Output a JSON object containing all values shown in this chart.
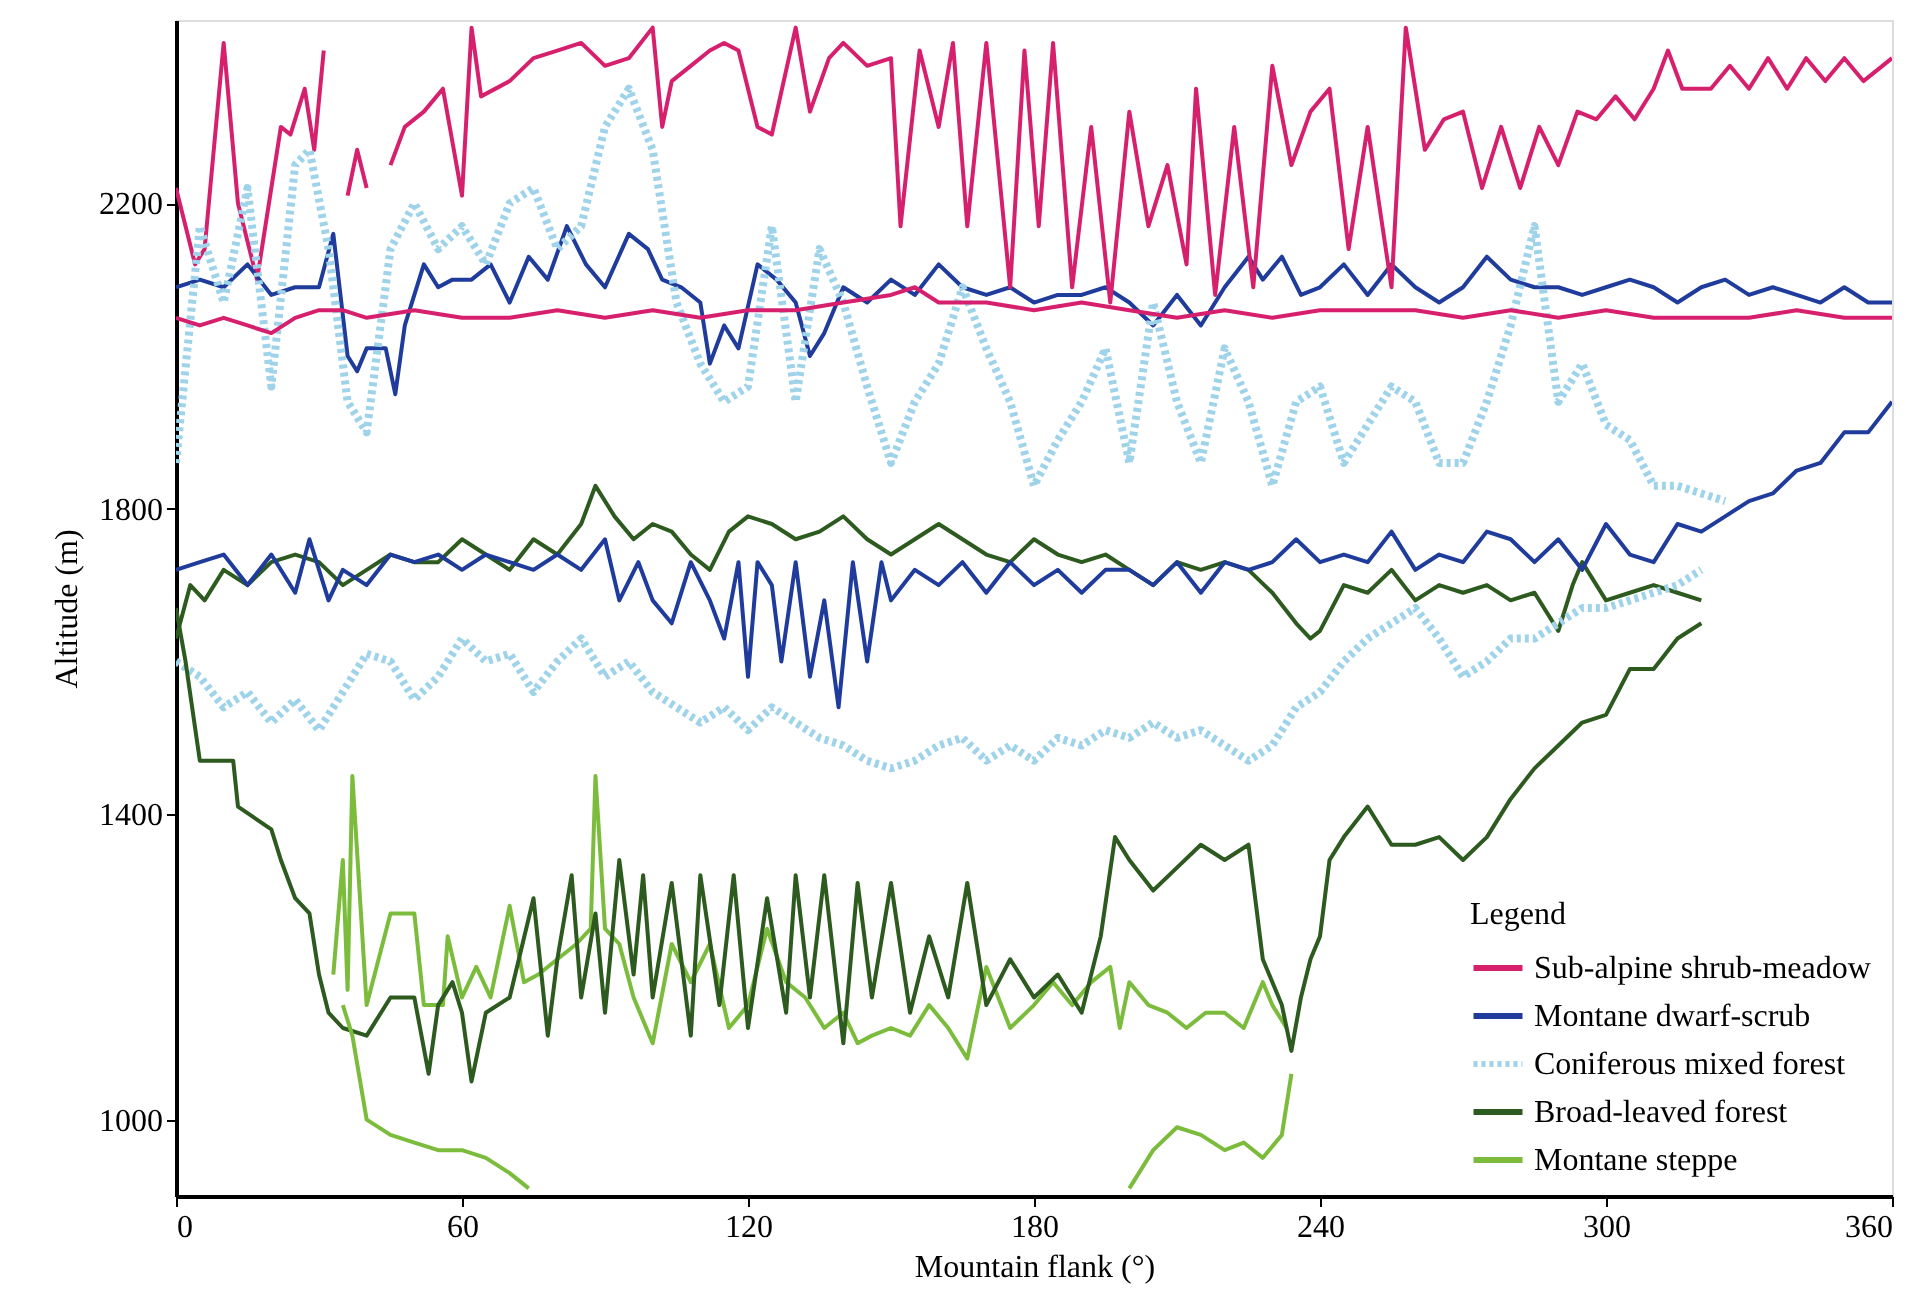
{
  "chart_data": {
    "type": "line",
    "xlabel": "Mountain flank (°)",
    "ylabel": "Altitude (m)",
    "legend_title": "Legend",
    "xlim": [
      0,
      360
    ],
    "xticks": [
      0,
      60,
      120,
      180,
      240,
      300,
      360
    ],
    "ylim": [
      900,
      2440
    ],
    "yticks": [
      1000,
      1400,
      1800,
      2200
    ],
    "grid": false,
    "legend": "bottom right",
    "marker": "none",
    "series": [
      {
        "name": "Sub-alpine shrub-meadow",
        "color": "#d6206e",
        "line_style": "solid",
        "x": [
          0,
          4,
          6,
          10,
          13,
          17,
          22,
          24,
          27,
          29,
          31
        ],
        "values": [
          2220,
          2120,
          2140,
          2410,
          2200,
          2100,
          2300,
          2290,
          2350,
          2270,
          2400
        ]
      },
      {
        "name": "Montane dwarf-scrub",
        "color": "#1f3c9c",
        "line_style": "solid",
        "x": [
          0,
          5,
          10,
          15,
          20,
          25,
          30,
          33,
          36,
          38,
          40,
          44,
          46,
          48,
          52,
          55,
          58,
          62,
          66,
          70,
          74,
          78,
          82,
          86,
          90,
          95,
          99,
          102,
          106,
          110,
          112,
          115,
          118,
          122,
          126,
          130,
          133,
          136,
          140,
          145,
          150,
          155,
          160,
          165,
          170,
          175,
          180,
          185,
          190,
          195,
          200,
          205,
          210,
          215,
          220,
          225,
          228,
          232,
          236,
          240,
          245,
          250,
          255,
          260,
          265,
          270,
          275,
          280,
          285,
          290,
          295,
          300,
          305,
          310,
          315,
          320,
          325,
          330,
          335,
          340,
          345,
          350,
          355,
          360
        ],
        "values": [
          2090,
          2100,
          2090,
          2120,
          2080,
          2090,
          2090,
          2160,
          2000,
          1980,
          2010,
          2010,
          1950,
          2040,
          2120,
          2090,
          2100,
          2100,
          2120,
          2070,
          2130,
          2100,
          2170,
          2120,
          2090,
          2160,
          2140,
          2100,
          2090,
          2070,
          1990,
          2040,
          2010,
          2120,
          2100,
          2070,
          2000,
          2030,
          2090,
          2070,
          2100,
          2080,
          2120,
          2090,
          2080,
          2090,
          2070,
          2080,
          2080,
          2090,
          2070,
          2040,
          2080,
          2040,
          2090,
          2130,
          2100,
          2130,
          2080,
          2090,
          2120,
          2080,
          2120,
          2090,
          2070,
          2090,
          2130,
          2100,
          2090,
          2090,
          2080,
          2090,
          2100,
          2090,
          2070,
          2090,
          2100,
          2080,
          2090,
          2080,
          2070,
          2090,
          2070,
          2070
        ]
      },
      {
        "name": "Coniferous mixed forest",
        "color": "#9fd3ea",
        "line_style": "dotted",
        "x": [
          0,
          5,
          10,
          15,
          20,
          25,
          28,
          32,
          36,
          40,
          45,
          50,
          55,
          60,
          65,
          70,
          75,
          80,
          85,
          90,
          95,
          100,
          105,
          110,
          115,
          120,
          125,
          130,
          135,
          140,
          145,
          150,
          155,
          160,
          165,
          170,
          175,
          180,
          185,
          190,
          195,
          200,
          205,
          210,
          215,
          220,
          225,
          230,
          235,
          240,
          245,
          250,
          255,
          260,
          265,
          270,
          275,
          280,
          285,
          290,
          295,
          300,
          305,
          310,
          315,
          320,
          325
        ],
        "values": [
          1860,
          2170,
          2070,
          2220,
          1960,
          2250,
          2270,
          2140,
          1940,
          1900,
          2140,
          2200,
          2140,
          2170,
          2120,
          2200,
          2220,
          2140,
          2170,
          2300,
          2350,
          2270,
          2070,
          1990,
          1940,
          1960,
          2170,
          1940,
          2140,
          2070,
          1960,
          1860,
          1940,
          1990,
          2090,
          2010,
          1940,
          1830,
          1890,
          1940,
          2010,
          1860,
          2070,
          1940,
          1860,
          2010,
          1940,
          1830,
          1940,
          1960,
          1860,
          1910,
          1960,
          1940,
          1860,
          1860,
          1940,
          2040,
          2170,
          1940,
          1990,
          1910,
          1890,
          1830,
          1830,
          1820,
          1810
        ]
      },
      {
        "name": "Broad-leaved forest",
        "color": "#2d5a1e",
        "line_style": "solid",
        "x": [
          0,
          3,
          6,
          10,
          15,
          20,
          25,
          30,
          35,
          40,
          45,
          50,
          55,
          60,
          65,
          70,
          75,
          80,
          85,
          88,
          92,
          96,
          100,
          104,
          108,
          112,
          116,
          120,
          125,
          130,
          135,
          140,
          145,
          150,
          155,
          160,
          165,
          170,
          175,
          180,
          185,
          190,
          195,
          200,
          205,
          210,
          215,
          220,
          225,
          230,
          235,
          238,
          240,
          245,
          250,
          255,
          260,
          265,
          270,
          275,
          280,
          285,
          290,
          293,
          295,
          300,
          305,
          310,
          315,
          320
        ],
        "values": [
          1630,
          1700,
          1680,
          1720,
          1700,
          1730,
          1740,
          1730,
          1700,
          1720,
          1740,
          1730,
          1730,
          1760,
          1740,
          1720,
          1760,
          1740,
          1780,
          1830,
          1790,
          1760,
          1780,
          1770,
          1740,
          1720,
          1770,
          1790,
          1780,
          1760,
          1770,
          1790,
          1760,
          1740,
          1760,
          1780,
          1760,
          1740,
          1730,
          1760,
          1740,
          1730,
          1740,
          1720,
          1700,
          1730,
          1720,
          1730,
          1720,
          1690,
          1650,
          1630,
          1640,
          1700,
          1690,
          1720,
          1680,
          1700,
          1690,
          1700,
          1680,
          1690,
          1640,
          1700,
          1730,
          1680,
          1690,
          1700,
          1690,
          1680
        ]
      },
      {
        "name": "Montane steppe",
        "color": "#7cbc3c",
        "line_style": "solid",
        "x": [
          33,
          35,
          36,
          37,
          40,
          45,
          50,
          52,
          56,
          57,
          60,
          63,
          66,
          70,
          73,
          76,
          80,
          84,
          87,
          88,
          90,
          93,
          96,
          100,
          104,
          108,
          112,
          116,
          120,
          124,
          128,
          132,
          136,
          140,
          143,
          146,
          150,
          154,
          158,
          162,
          166,
          170,
          175,
          180,
          184,
          188,
          192,
          196,
          198,
          200,
          204,
          208,
          212,
          216,
          220,
          224,
          228,
          230,
          233
        ],
        "values": [
          1190,
          1340,
          1170,
          1450,
          1150,
          1270,
          1270,
          1150,
          1150,
          1240,
          1160,
          1200,
          1160,
          1280,
          1180,
          1190,
          1210,
          1230,
          1250,
          1450,
          1250,
          1230,
          1160,
          1100,
          1230,
          1180,
          1230,
          1120,
          1150,
          1250,
          1180,
          1160,
          1120,
          1140,
          1100,
          1110,
          1120,
          1110,
          1150,
          1120,
          1080,
          1200,
          1120,
          1150,
          1180,
          1150,
          1180,
          1200,
          1120,
          1180,
          1150,
          1140,
          1120,
          1140,
          1140,
          1120,
          1180,
          1150,
          1120
        ]
      },
      {
        "color": "#d6206e",
        "line_style": "solid",
        "x": [
          36,
          38,
          40
        ],
        "values": [
          2210,
          2270,
          2220
        ]
      },
      {
        "color": "#d6206e",
        "line_style": "solid",
        "x": [
          45,
          48,
          52,
          56,
          60,
          62,
          64,
          70,
          75,
          80,
          85,
          90,
          95,
          100,
          102,
          104,
          108,
          112,
          115,
          118,
          122,
          125,
          130,
          133,
          137,
          140,
          145,
          150,
          152,
          156,
          160,
          163,
          166,
          170,
          175,
          178,
          181,
          184,
          188,
          192,
          196,
          200,
          204,
          208,
          212,
          214,
          218,
          222,
          226,
          230,
          234,
          238,
          242,
          246,
          250,
          255,
          258,
          262,
          266,
          270,
          274,
          278,
          282,
          286,
          290,
          294,
          298,
          302,
          306,
          310,
          313,
          316,
          322,
          326,
          330,
          334,
          338,
          342,
          346,
          350,
          354,
          358,
          360
        ],
        "values": [
          2250,
          2300,
          2320,
          2350,
          2210,
          2430,
          2340,
          2360,
          2390,
          2400,
          2410,
          2380,
          2390,
          2430,
          2300,
          2360,
          2380,
          2400,
          2410,
          2400,
          2300,
          2290,
          2430,
          2320,
          2390,
          2410,
          2380,
          2390,
          2170,
          2400,
          2300,
          2410,
          2170,
          2410,
          2090,
          2400,
          2170,
          2410,
          2090,
          2300,
          2070,
          2320,
          2170,
          2250,
          2120,
          2350,
          2080,
          2300,
          2090,
          2380,
          2250,
          2320,
          2350,
          2140,
          2300,
          2090,
          2430,
          2270,
          2310,
          2320,
          2220,
          2300,
          2220,
          2300,
          2250,
          2320,
          2310,
          2340,
          2310,
          2350,
          2400,
          2350,
          2350,
          2380,
          2350,
          2390,
          2350,
          2390,
          2360,
          2390,
          2360,
          2380,
          2390
        ]
      },
      {
        "color": "#d6206e",
        "line_style": "solid",
        "x": [
          0,
          5,
          10,
          15,
          20,
          25,
          30,
          35,
          40,
          50,
          60,
          70,
          80,
          90,
          100,
          110,
          120,
          130,
          140,
          150,
          155,
          160,
          170,
          180,
          190,
          200,
          210,
          220,
          230,
          240,
          250,
          260,
          270,
          280,
          290,
          300,
          310,
          320,
          330,
          340,
          350,
          360
        ],
        "values": [
          2050,
          2040,
          2050,
          2040,
          2030,
          2050,
          2060,
          2060,
          2050,
          2060,
          2050,
          2050,
          2060,
          2050,
          2060,
          2050,
          2060,
          2060,
          2070,
          2080,
          2090,
          2070,
          2070,
          2060,
          2070,
          2060,
          2050,
          2060,
          2050,
          2060,
          2060,
          2060,
          2050,
          2060,
          2050,
          2060,
          2050,
          2050,
          2050,
          2060,
          2050,
          2050
        ]
      },
      {
        "color": "#1f3c9c",
        "line_style": "solid",
        "x": [
          0,
          5,
          10,
          15,
          20,
          25,
          28,
          32,
          35,
          40,
          45,
          50,
          55,
          60,
          65,
          70,
          75,
          80,
          85,
          90,
          93,
          97,
          100,
          104,
          108,
          112,
          115,
          118,
          120,
          122,
          125,
          127,
          130,
          133,
          136,
          139,
          142,
          145,
          148,
          150,
          155,
          160,
          165,
          170,
          175,
          180,
          185,
          190,
          195,
          200,
          205,
          210,
          215,
          220,
          225,
          230,
          235,
          240,
          245,
          250,
          255,
          260,
          265,
          270,
          275,
          280,
          285,
          290,
          295,
          300,
          305,
          310,
          315,
          320,
          325,
          330,
          335,
          340,
          345,
          350,
          355,
          360
        ],
        "values": [
          1720,
          1730,
          1740,
          1700,
          1740,
          1690,
          1760,
          1680,
          1720,
          1700,
          1740,
          1730,
          1740,
          1720,
          1740,
          1730,
          1720,
          1740,
          1720,
          1760,
          1680,
          1730,
          1680,
          1650,
          1730,
          1680,
          1630,
          1730,
          1580,
          1730,
          1700,
          1600,
          1730,
          1580,
          1680,
          1540,
          1730,
          1600,
          1730,
          1680,
          1720,
          1700,
          1730,
          1690,
          1730,
          1700,
          1720,
          1690,
          1720,
          1720,
          1700,
          1730,
          1690,
          1730,
          1720,
          1730,
          1760,
          1730,
          1740,
          1730,
          1770,
          1720,
          1740,
          1730,
          1770,
          1760,
          1730,
          1760,
          1720,
          1780,
          1740,
          1730,
          1780,
          1770,
          1790,
          1810,
          1820,
          1850,
          1860,
          1900,
          1900,
          1940
        ]
      },
      {
        "color": "#9fd3ea",
        "line_style": "dotted",
        "x": [
          0,
          5,
          10,
          15,
          20,
          25,
          30,
          35,
          40,
          45,
          50,
          55,
          60,
          65,
          70,
          75,
          80,
          85,
          90,
          95,
          100,
          105,
          110,
          115,
          120,
          125,
          130,
          135,
          140,
          145,
          150,
          155,
          160,
          165,
          170,
          175,
          180,
          185,
          190,
          195,
          200,
          205,
          210,
          215,
          220,
          225,
          230,
          235,
          240,
          245,
          250,
          255,
          260,
          265,
          270,
          275,
          280,
          285,
          290,
          295,
          300,
          305,
          310,
          315,
          320
        ],
        "values": [
          1600,
          1580,
          1540,
          1560,
          1520,
          1550,
          1510,
          1560,
          1610,
          1600,
          1550,
          1580,
          1630,
          1600,
          1610,
          1560,
          1600,
          1630,
          1580,
          1600,
          1560,
          1540,
          1520,
          1540,
          1510,
          1540,
          1520,
          1500,
          1490,
          1470,
          1460,
          1470,
          1490,
          1500,
          1470,
          1490,
          1470,
          1500,
          1490,
          1510,
          1500,
          1520,
          1500,
          1510,
          1490,
          1470,
          1490,
          1540,
          1560,
          1600,
          1630,
          1650,
          1670,
          1630,
          1580,
          1600,
          1630,
          1630,
          1650,
          1670,
          1670,
          1680,
          1690,
          1700,
          1720
        ]
      },
      {
        "color": "#2d5a1e",
        "line_style": "solid",
        "x": [
          0,
          2,
          5,
          12,
          13,
          20,
          22,
          25,
          28,
          30,
          32,
          35,
          40,
          45,
          50,
          53,
          55,
          58,
          60,
          62,
          65,
          70,
          75,
          78,
          80,
          83,
          85,
          88,
          90,
          93,
          96,
          98,
          100,
          104,
          108,
          110,
          114,
          117,
          120,
          124,
          128,
          130,
          133,
          136,
          140,
          143,
          146,
          150,
          154,
          158,
          162,
          166,
          170,
          175,
          180,
          185,
          190,
          194,
          197,
          200,
          205,
          210,
          215,
          220,
          225,
          228,
          232,
          234,
          236,
          238,
          240,
          242,
          245,
          250,
          255,
          260,
          265,
          270,
          275,
          280,
          285,
          290,
          295,
          300,
          305,
          310,
          315,
          320
        ],
        "values": [
          1670,
          1600,
          1470,
          1470,
          1410,
          1380,
          1340,
          1290,
          1270,
          1190,
          1140,
          1120,
          1110,
          1160,
          1160,
          1060,
          1150,
          1180,
          1140,
          1050,
          1140,
          1160,
          1290,
          1110,
          1210,
          1320,
          1160,
          1270,
          1140,
          1340,
          1190,
          1320,
          1160,
          1310,
          1110,
          1320,
          1150,
          1320,
          1120,
          1290,
          1140,
          1320,
          1160,
          1320,
          1100,
          1310,
          1160,
          1310,
          1140,
          1240,
          1160,
          1310,
          1150,
          1210,
          1160,
          1190,
          1140,
          1240,
          1370,
          1340,
          1300,
          1330,
          1360,
          1340,
          1360,
          1210,
          1150,
          1090,
          1160,
          1210,
          1240,
          1340,
          1370,
          1410,
          1360,
          1360,
          1370,
          1340,
          1370,
          1420,
          1460,
          1490,
          1520,
          1530,
          1590,
          1590,
          1630,
          1650
        ]
      },
      {
        "color": "#7cbc3c",
        "line_style": "solid",
        "x": [
          35,
          37,
          40,
          45,
          50,
          55,
          60,
          65,
          70,
          74
        ],
        "values": [
          1150,
          1110,
          1000,
          980,
          970,
          960,
          960,
          950,
          930,
          910
        ]
      },
      {
        "color": "#7cbc3c",
        "line_style": "solid",
        "x": [
          200,
          205,
          210,
          215,
          220,
          224,
          228,
          232,
          234
        ],
        "values": [
          910,
          960,
          990,
          980,
          960,
          970,
          950,
          980,
          1060
        ]
      }
    ]
  }
}
